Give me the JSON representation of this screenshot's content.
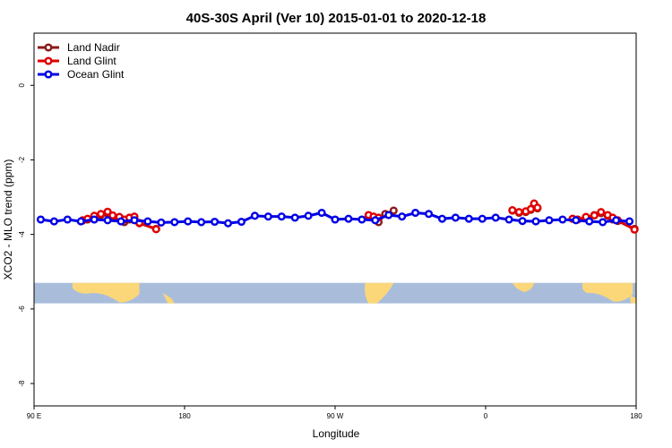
{
  "chart_data": {
    "type": "line",
    "title": "40S-30S April (Ver 10)   2015-01-01 to 2020-12-18",
    "xlabel": "Longitude",
    "ylabel": "XCO2 - MLO trend (ppm)",
    "xlim": [
      90,
      450
    ],
    "ylim": [
      -8.6,
      1.4
    ],
    "x_ticks": [
      {
        "value": 90,
        "label": "90 E"
      },
      {
        "value": 180,
        "label": "180"
      },
      {
        "value": 270,
        "label": "90 W"
      },
      {
        "value": 360,
        "label": "0"
      },
      {
        "value": 450,
        "label": "180"
      }
    ],
    "y_ticks": [
      {
        "value": 0,
        "label": "0"
      },
      {
        "value": -2,
        "label": "-2"
      },
      {
        "value": -4,
        "label": "-4"
      },
      {
        "value": -6,
        "label": "-6"
      },
      {
        "value": -8,
        "label": "-8"
      }
    ],
    "legend_position": "top-left",
    "grid": false,
    "map_band": {
      "y_top": -5.3,
      "y_bottom": -5.85,
      "ocean_color": "#a9bddb",
      "land_color": "#fbd77a"
    },
    "series": [
      {
        "name": "Land Nadir",
        "color": "#8b1a1a",
        "x": [
          119,
          122,
          126,
          130,
          134,
          137,
          141,
          144,
          147,
          150,
          153,
          163,
          290,
          293,
          296,
          300,
          305,
          376,
          380,
          384,
          387,
          389,
          391,
          412,
          415,
          420,
          425,
          429,
          433,
          436,
          439,
          449
        ],
        "y": [
          -3.63,
          -3.6,
          -3.55,
          -3.48,
          -3.44,
          -3.52,
          -3.58,
          -3.67,
          -3.6,
          -3.58,
          -3.7,
          -3.85,
          -3.52,
          -3.56,
          -3.67,
          -3.45,
          -3.36,
          -3.36,
          -3.42,
          -3.4,
          -3.34,
          -3.18,
          -3.3,
          -3.58,
          -3.6,
          -3.56,
          -3.48,
          -3.43,
          -3.5,
          -3.6,
          -3.64,
          -3.85
        ]
      },
      {
        "name": "Land Glint",
        "color": "#e00000",
        "x": [
          119,
          122,
          126,
          130,
          134,
          137,
          141,
          144,
          147,
          150,
          153,
          163,
          290,
          293,
          296,
          376,
          380,
          384,
          387,
          389,
          391,
          412,
          415,
          420,
          425,
          429,
          433,
          436,
          439,
          449
        ],
        "y": [
          -3.62,
          -3.58,
          -3.5,
          -3.45,
          -3.39,
          -3.49,
          -3.53,
          -3.6,
          -3.55,
          -3.52,
          -3.69,
          -3.86,
          -3.48,
          -3.52,
          -3.55,
          -3.35,
          -3.4,
          -3.38,
          -3.32,
          -3.17,
          -3.28,
          -3.58,
          -3.6,
          -3.53,
          -3.49,
          -3.4,
          -3.48,
          -3.55,
          -3.62,
          -3.87
        ]
      },
      {
        "name": "Ocean Glint",
        "color": "#0000e6",
        "x": [
          94,
          102,
          110,
          118,
          126,
          134,
          142,
          150,
          158,
          166,
          174,
          182,
          190,
          198,
          206,
          214,
          222,
          230,
          238,
          246,
          254,
          262,
          270,
          278,
          286,
          294,
          302,
          310,
          318,
          326,
          334,
          342,
          350,
          358,
          366,
          374,
          382,
          390,
          398,
          406,
          414,
          422,
          430,
          438,
          446
        ],
        "y": [
          -3.6,
          -3.65,
          -3.6,
          -3.65,
          -3.6,
          -3.62,
          -3.65,
          -3.62,
          -3.65,
          -3.68,
          -3.67,
          -3.65,
          -3.67,
          -3.66,
          -3.7,
          -3.66,
          -3.5,
          -3.52,
          -3.52,
          -3.55,
          -3.5,
          -3.42,
          -3.6,
          -3.58,
          -3.6,
          -3.62,
          -3.48,
          -3.52,
          -3.42,
          -3.45,
          -3.58,
          -3.55,
          -3.58,
          -3.58,
          -3.55,
          -3.6,
          -3.64,
          -3.65,
          -3.62,
          -3.6,
          -3.62,
          -3.65,
          -3.67,
          -3.62,
          -3.65
        ]
      }
    ]
  }
}
